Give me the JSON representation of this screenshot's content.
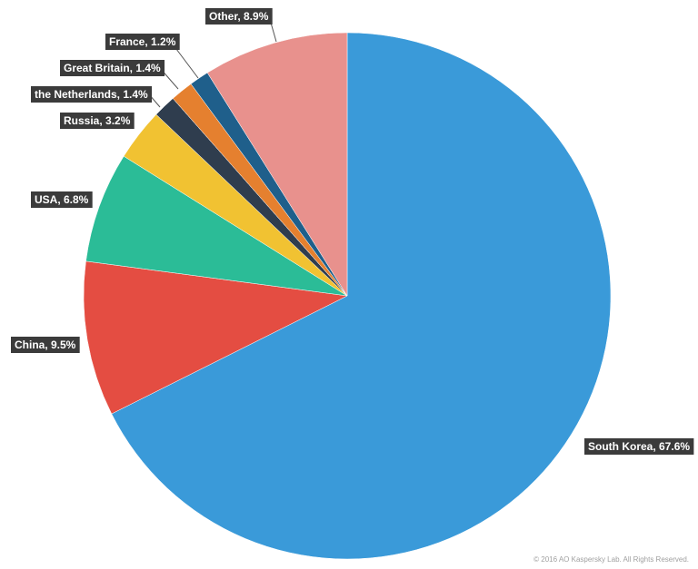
{
  "chart_data": {
    "type": "pie",
    "start": "12 o'clock, clockwise",
    "slices": [
      {
        "label": "South Korea, 67.6%",
        "value": 67.6,
        "color": "#3a9ad9"
      },
      {
        "label": "China, 9.5%",
        "value": 9.5,
        "color": "#e44d42"
      },
      {
        "label": "USA, 6.8%",
        "value": 6.8,
        "color": "#2bbc97"
      },
      {
        "label": "Russia, 3.2%",
        "value": 3.2,
        "color": "#f1c232"
      },
      {
        "label": "the Netherlands, 1.4%",
        "value": 1.4,
        "color": "#2f3d4e"
      },
      {
        "label": "Great Britain, 1.4%",
        "value": 1.4,
        "color": "#e5802f"
      },
      {
        "label": "France, 1.2%",
        "value": 1.2,
        "color": "#1f5f8b"
      },
      {
        "label": "Other, 8.9%",
        "value": 8.9,
        "color": "#e8918d"
      }
    ]
  },
  "footer": {
    "copyright": "© 2016 AO Kaspersky Lab. All Rights Reserved."
  }
}
